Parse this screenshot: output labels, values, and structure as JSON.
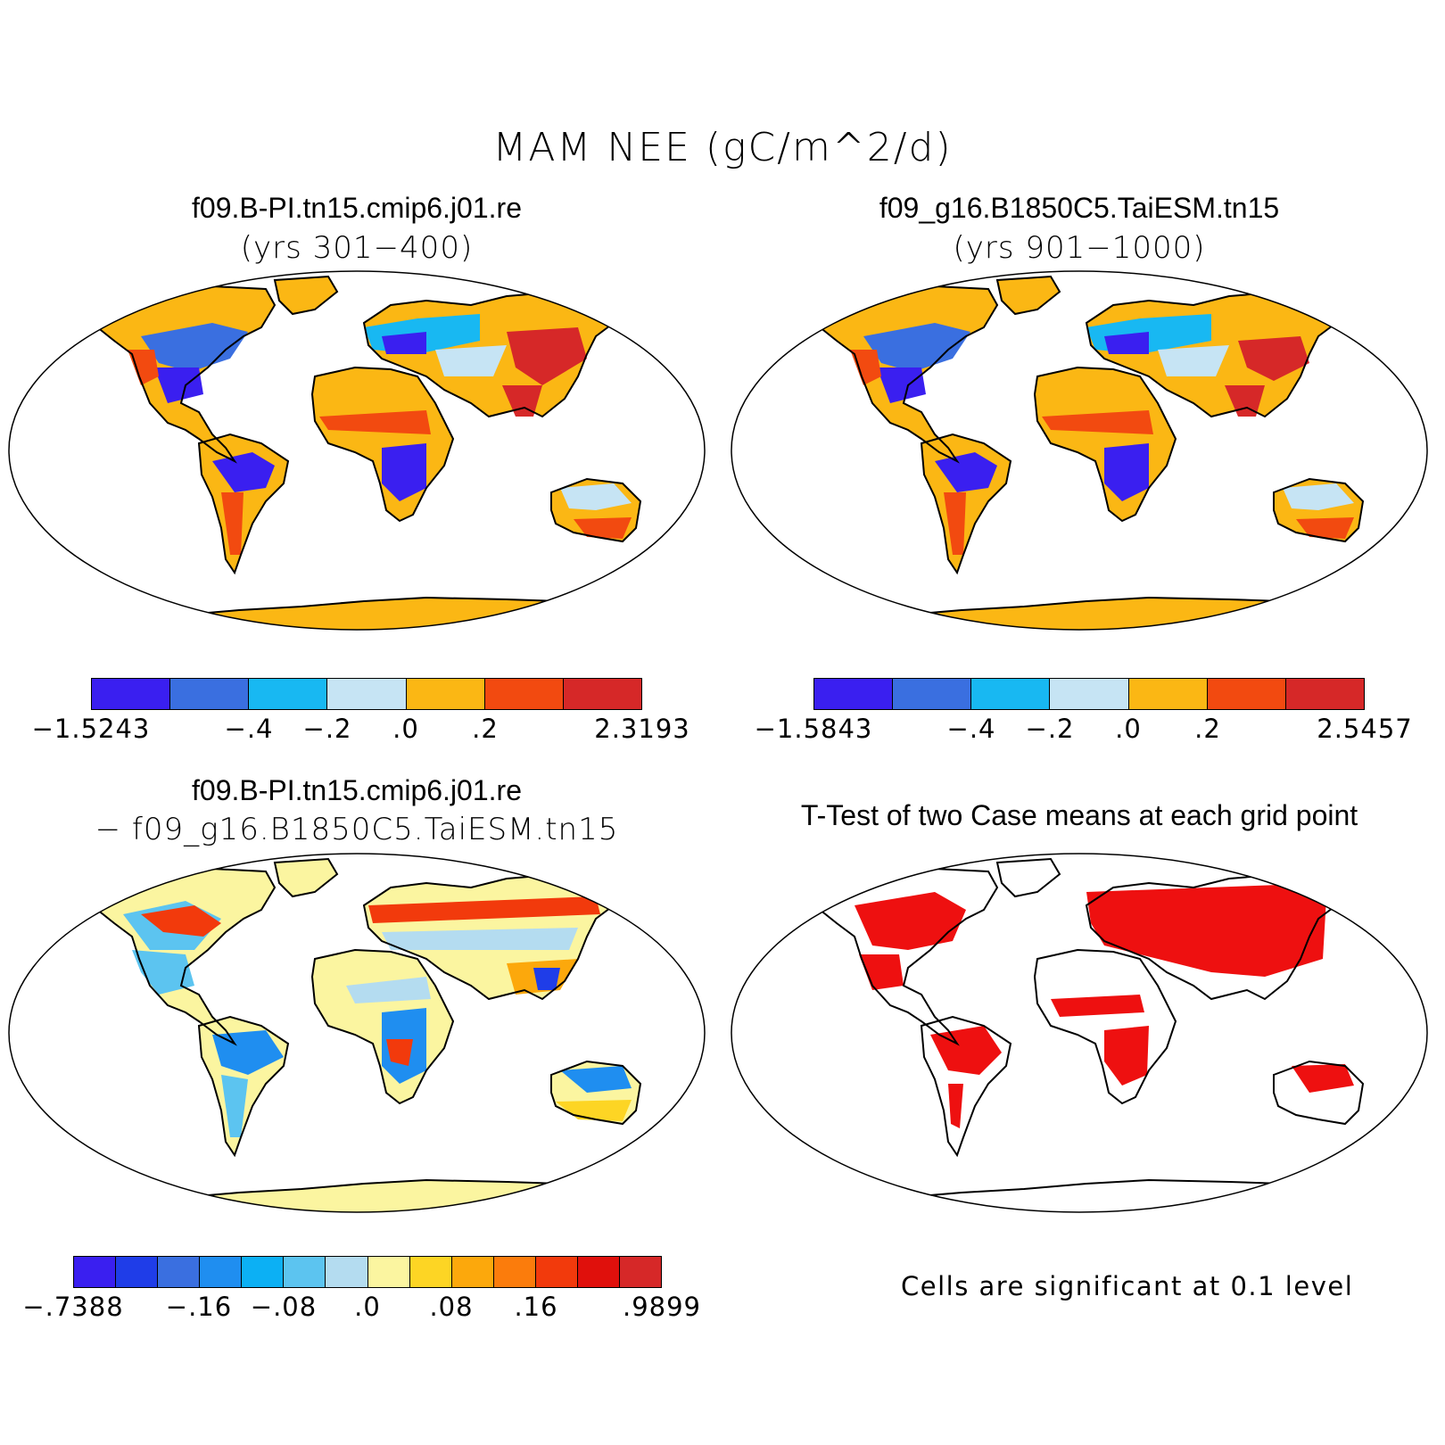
{
  "title": "MAM NEE (gC/m^2/d)",
  "panels": {
    "p1": {
      "title": "f09.B-PI.tn15.cmip6.j01.re",
      "subtitle": "(yrs 301−400)",
      "colorbar": {
        "colors": [
          "#3a1ff0",
          "#3a6fe0",
          "#18b8f2",
          "#c6e4f4",
          "#fbb714",
          "#f24a10",
          "#d62828"
        ],
        "tick_labels": [
          "−1.5243",
          "−.4",
          "−.2",
          ".0",
          ".2",
          "2.3193"
        ]
      }
    },
    "p2": {
      "title": "f09_g16.B1850C5.TaiESM.tn15",
      "subtitle": "(yrs 901−1000)",
      "colorbar": {
        "colors": [
          "#3a1ff0",
          "#3a6fe0",
          "#18b8f2",
          "#c6e4f4",
          "#fbb714",
          "#f24a10",
          "#d62828"
        ],
        "tick_labels": [
          "−1.5843",
          "−.4",
          "−.2",
          ".0",
          ".2",
          "2.5457"
        ]
      }
    },
    "p3": {
      "title": "f09.B-PI.tn15.cmip6.j01.re",
      "subtitle": "− f09_g16.B1850C5.TaiESM.tn15",
      "colorbar": {
        "colors": [
          "#3a1ff0",
          "#1f3de8",
          "#3a6fe0",
          "#1f8ef0",
          "#0cb0f4",
          "#5cc4f0",
          "#b4dcf0",
          "#fbf5a0",
          "#fdd524",
          "#fca80c",
          "#fb7c0c",
          "#f23a0c",
          "#e0100c",
          "#d62828"
        ],
        "tick_labels": [
          "−.7388",
          "−.16",
          "−.08",
          ".0",
          ".08",
          ".16",
          ".9899"
        ]
      }
    },
    "p4": {
      "title": "T-Test of two Case means at each grid point",
      "note": "Cells are significant at 0.1 level",
      "fill_color": "#ee1010"
    }
  }
}
